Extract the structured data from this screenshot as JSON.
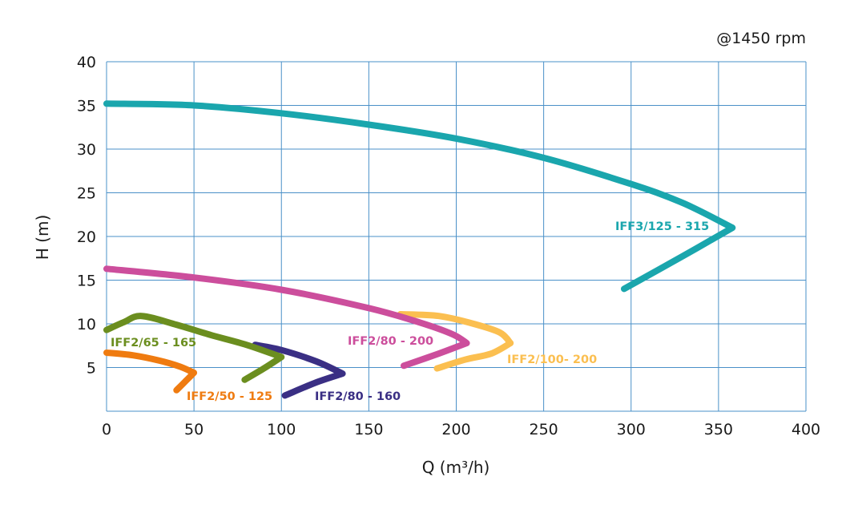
{
  "chart_data": {
    "type": "line",
    "annotation": "@1450 rpm",
    "xlabel": "Q (m³/h)",
    "ylabel": "H (m)",
    "xlim": [
      0,
      400
    ],
    "ylim": [
      0,
      40
    ],
    "xticks": [
      0,
      50,
      100,
      150,
      200,
      250,
      300,
      350,
      400
    ],
    "yticks": [
      5,
      10,
      15,
      20,
      25,
      30,
      35,
      40
    ],
    "x_tick_labels": [
      "0",
      "50",
      "100",
      "150",
      "200",
      "250",
      "300",
      "350",
      "400"
    ],
    "y_tick_labels": [
      "5",
      "10",
      "15",
      "20",
      "25",
      "30",
      "35",
      "40"
    ],
    "grid": true,
    "series": [
      {
        "name": "IFF3/125 - 315",
        "color": "#1aa6ad",
        "points": [
          [
            0,
            35.2
          ],
          [
            50,
            35.0
          ],
          [
            100,
            34.1
          ],
          [
            150,
            32.8
          ],
          [
            200,
            31.2
          ],
          [
            250,
            29.0
          ],
          [
            300,
            26.0
          ],
          [
            330,
            23.8
          ],
          [
            358,
            21.0
          ],
          [
            330,
            17.8
          ],
          [
            296,
            14.0
          ]
        ]
      },
      {
        "name": "IFF2/100- 200",
        "color": "#fbbf50",
        "points": [
          [
            168,
            11.1
          ],
          [
            190,
            10.9
          ],
          [
            210,
            10.0
          ],
          [
            225,
            9.0
          ],
          [
            231,
            7.8
          ],
          [
            220,
            6.6
          ],
          [
            205,
            5.9
          ],
          [
            189,
            4.9
          ]
        ]
      },
      {
        "name": "IFF2/80 - 200",
        "color": "#cc4e9c",
        "points": [
          [
            0,
            16.3
          ],
          [
            50,
            15.3
          ],
          [
            100,
            13.9
          ],
          [
            150,
            11.8
          ],
          [
            180,
            10.1
          ],
          [
            198,
            8.8
          ],
          [
            206,
            7.8
          ],
          [
            190,
            6.6
          ],
          [
            170,
            5.2
          ]
        ]
      },
      {
        "name": "IFF2/80 - 160",
        "color": "#3a2f84",
        "points": [
          [
            85,
            7.6
          ],
          [
            100,
            7.0
          ],
          [
            120,
            5.7
          ],
          [
            135,
            4.3
          ],
          [
            120,
            3.3
          ],
          [
            102,
            1.8
          ]
        ]
      },
      {
        "name": "IFF2/65 - 165",
        "color": "#6b8e1f",
        "points": [
          [
            0,
            9.3
          ],
          [
            10,
            10.2
          ],
          [
            20,
            10.9
          ],
          [
            40,
            9.9
          ],
          [
            60,
            8.7
          ],
          [
            80,
            7.6
          ],
          [
            100,
            6.2
          ],
          [
            90,
            4.9
          ],
          [
            79,
            3.6
          ]
        ]
      },
      {
        "name": "IFF2/50 - 125",
        "color": "#ef7b10",
        "points": [
          [
            0,
            6.7
          ],
          [
            15,
            6.4
          ],
          [
            30,
            5.8
          ],
          [
            42,
            5.1
          ],
          [
            50,
            4.4
          ],
          [
            45,
            3.4
          ],
          [
            40,
            2.4
          ]
        ]
      }
    ],
    "labels": [
      {
        "text": "IFF3/125 - 315",
        "series": 0
      },
      {
        "text": "IFF2/100- 200",
        "series": 1
      },
      {
        "text": "IFF2/80 - 200",
        "series": 2
      },
      {
        "text": "IFF2/80 - 160",
        "series": 3
      },
      {
        "text": "IFF2/65 - 165",
        "series": 4
      },
      {
        "text": "IFF2/50 - 125",
        "series": 5
      }
    ]
  }
}
